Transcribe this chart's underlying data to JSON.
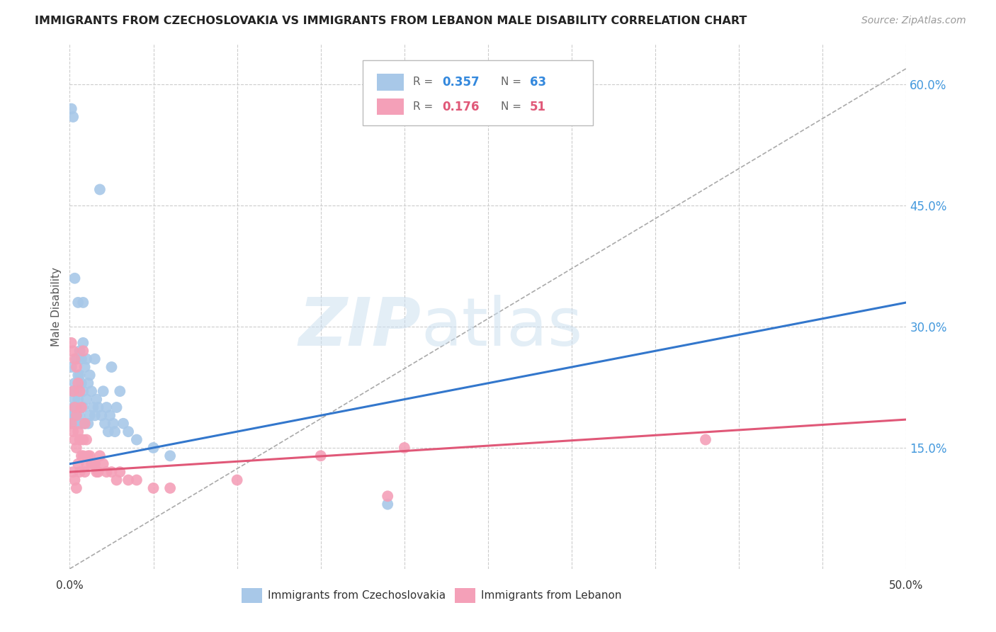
{
  "title": "IMMIGRANTS FROM CZECHOSLOVAKIA VS IMMIGRANTS FROM LEBANON MALE DISABILITY CORRELATION CHART",
  "source": "Source: ZipAtlas.com",
  "ylabel": "Male Disability",
  "xlim": [
    0.0,
    0.5
  ],
  "ylim": [
    0.0,
    0.65
  ],
  "xticks": [
    0.0,
    0.05,
    0.1,
    0.15,
    0.2,
    0.25,
    0.3,
    0.35,
    0.4,
    0.45,
    0.5
  ],
  "yticks_right": [
    0.15,
    0.3,
    0.45,
    0.6
  ],
  "ytick_labels_right": [
    "15.0%",
    "30.0%",
    "45.0%",
    "60.0%"
  ],
  "grid_color": "#cccccc",
  "background_color": "#ffffff",
  "series1_label": "Immigrants from Czechoslovakia",
  "series1_color": "#a8c8e8",
  "series1_R": "0.357",
  "series1_N": "63",
  "series2_label": "Immigrants from Lebanon",
  "series2_color": "#f4a0b8",
  "series2_R": "0.176",
  "series2_N": "51",
  "trend1_color": "#3377cc",
  "trend2_color": "#e05878",
  "diagonal_color": "#aaaaaa",
  "series1_x": [
    0.001,
    0.001,
    0.002,
    0.002,
    0.002,
    0.002,
    0.002,
    0.003,
    0.003,
    0.003,
    0.003,
    0.003,
    0.003,
    0.004,
    0.004,
    0.004,
    0.004,
    0.005,
    0.005,
    0.005,
    0.005,
    0.006,
    0.006,
    0.006,
    0.007,
    0.007,
    0.007,
    0.008,
    0.008,
    0.008,
    0.009,
    0.009,
    0.01,
    0.01,
    0.011,
    0.011,
    0.012,
    0.012,
    0.013,
    0.014,
    0.015,
    0.015,
    0.016,
    0.017,
    0.018,
    0.019,
    0.02,
    0.021,
    0.022,
    0.023,
    0.024,
    0.025,
    0.026,
    0.027,
    0.028,
    0.03,
    0.032,
    0.035,
    0.04,
    0.05,
    0.06,
    0.19,
    0.008
  ],
  "series1_y": [
    0.57,
    0.25,
    0.56,
    0.22,
    0.2,
    0.19,
    0.18,
    0.36,
    0.23,
    0.21,
    0.2,
    0.19,
    0.18,
    0.26,
    0.22,
    0.2,
    0.19,
    0.33,
    0.24,
    0.21,
    0.18,
    0.27,
    0.24,
    0.19,
    0.26,
    0.23,
    0.18,
    0.28,
    0.22,
    0.2,
    0.25,
    0.18,
    0.26,
    0.21,
    0.23,
    0.18,
    0.24,
    0.19,
    0.22,
    0.2,
    0.26,
    0.19,
    0.21,
    0.2,
    0.47,
    0.19,
    0.22,
    0.18,
    0.2,
    0.17,
    0.19,
    0.25,
    0.18,
    0.17,
    0.2,
    0.22,
    0.18,
    0.17,
    0.16,
    0.15,
    0.14,
    0.08,
    0.33
  ],
  "series2_x": [
    0.001,
    0.001,
    0.002,
    0.002,
    0.002,
    0.002,
    0.003,
    0.003,
    0.003,
    0.003,
    0.004,
    0.004,
    0.004,
    0.004,
    0.005,
    0.005,
    0.005,
    0.006,
    0.006,
    0.006,
    0.007,
    0.007,
    0.008,
    0.008,
    0.009,
    0.009,
    0.01,
    0.01,
    0.011,
    0.012,
    0.013,
    0.014,
    0.015,
    0.016,
    0.017,
    0.018,
    0.02,
    0.022,
    0.025,
    0.028,
    0.03,
    0.035,
    0.04,
    0.05,
    0.06,
    0.1,
    0.15,
    0.2,
    0.38,
    0.008,
    0.19
  ],
  "series2_y": [
    0.28,
    0.18,
    0.27,
    0.22,
    0.17,
    0.12,
    0.26,
    0.2,
    0.16,
    0.11,
    0.25,
    0.19,
    0.15,
    0.1,
    0.23,
    0.17,
    0.13,
    0.22,
    0.16,
    0.12,
    0.2,
    0.14,
    0.27,
    0.14,
    0.18,
    0.12,
    0.16,
    0.13,
    0.14,
    0.14,
    0.13,
    0.13,
    0.13,
    0.12,
    0.12,
    0.14,
    0.13,
    0.12,
    0.12,
    0.11,
    0.12,
    0.11,
    0.11,
    0.1,
    0.1,
    0.11,
    0.14,
    0.15,
    0.16,
    0.16,
    0.09
  ],
  "trend1_x0": 0.0,
  "trend1_x1": 0.5,
  "trend1_y0": 0.13,
  "trend1_y1": 0.33,
  "trend2_x0": 0.0,
  "trend2_x1": 0.5,
  "trend2_y0": 0.12,
  "trend2_y1": 0.185
}
